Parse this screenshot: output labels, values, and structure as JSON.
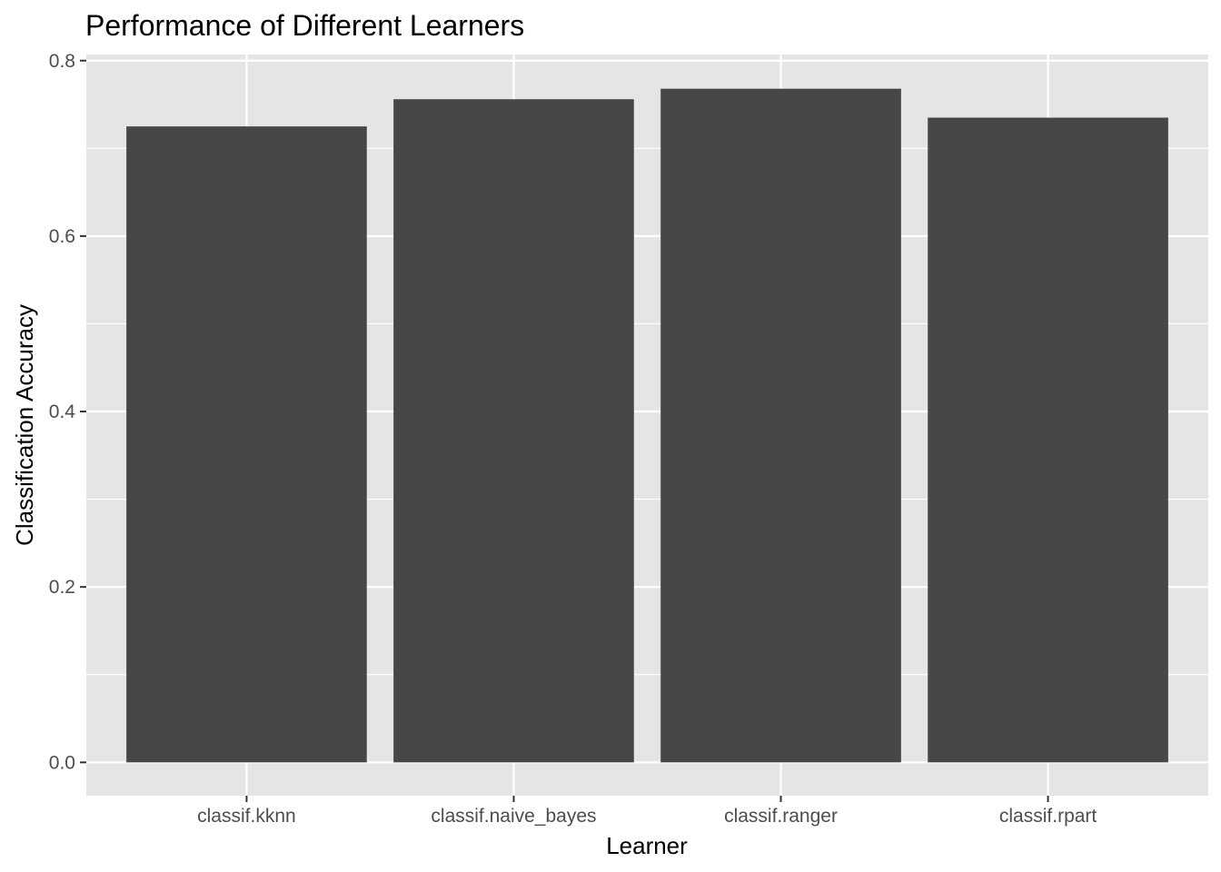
{
  "chart_data": {
    "type": "bar",
    "title": "Performance of Different Learners",
    "xlabel": "Learner",
    "ylabel": "Classification Accuracy",
    "categories": [
      "classif.kknn",
      "classif.naive_bayes",
      "classif.ranger",
      "classif.rpart"
    ],
    "values": [
      0.725,
      0.756,
      0.768,
      0.735
    ],
    "ylim": [
      -0.038,
      0.807
    ],
    "yticks": [
      0.0,
      0.2,
      0.4,
      0.6,
      0.8
    ],
    "ytick_labels": [
      "0.0",
      "0.2",
      "0.4",
      "0.6",
      "0.8"
    ],
    "grid": true,
    "legend": "none",
    "colors": {
      "bar": "#474747",
      "panel": "#e5e5e5",
      "grid": "#ffffff",
      "tick": "#333333"
    }
  }
}
